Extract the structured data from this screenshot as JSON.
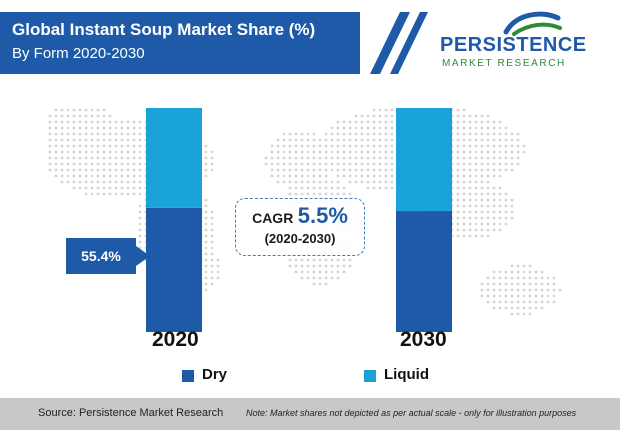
{
  "header": {
    "title": "Global Instant Soup Market Share (%)",
    "subtitle": "By Form 2020-2030",
    "colors": {
      "title_bar": "#1e5aa8",
      "title_text": "#ffffff"
    }
  },
  "logo": {
    "name": "PERSISTENCE",
    "tagline": "MARKET RESEARCH",
    "colors": {
      "name": "#1e5aa8",
      "tagline": "#2e8b3a",
      "swoosh_top": "#1e5aa8",
      "swoosh_bottom": "#2e8b3a"
    }
  },
  "chart_data": {
    "type": "bar",
    "stacked": true,
    "categories": [
      "2020",
      "2030"
    ],
    "series": [
      {
        "name": "Dry",
        "color": "#1e5aa8",
        "values": [
          55.4,
          54.0
        ]
      },
      {
        "name": "Liquid",
        "color": "#1aa3d9",
        "values": [
          44.6,
          46.0
        ]
      }
    ],
    "ylim": [
      0,
      100
    ],
    "data_labels": [
      {
        "category": "2020",
        "series": "Dry",
        "text": "55.4%"
      }
    ],
    "annotation": {
      "label": "CAGR",
      "value": "5.5%",
      "period": "(2020-2030)"
    },
    "legend_position": "bottom",
    "grid": false
  },
  "footer": {
    "source": "Source: Persistence Market Research",
    "note": "Note: Market shares not depicted as per actual scale - only for illustration purposes",
    "color": "#c8c8c8"
  }
}
